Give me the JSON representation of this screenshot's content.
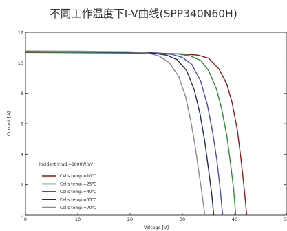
{
  "page": {
    "title": "不同工作温度下I-V曲线(SPP340N60H)"
  },
  "chart_data": {
    "type": "line",
    "title": "不同工作温度下I-V曲线(SPP340N60H)",
    "xlabel": "Voltage [V]",
    "ylabel": "Current [A]",
    "xlim": [
      0,
      50
    ],
    "ylim": [
      0,
      12
    ],
    "xticks": [
      0,
      10,
      20,
      30,
      40,
      50
    ],
    "yticks": [
      0,
      2,
      4,
      6,
      8,
      10,
      12
    ],
    "grid": false,
    "legend": {
      "placement": "bottom-left",
      "header": "Incident Irrad.=1000W/m²"
    },
    "series": [
      {
        "name": "Cells temp.=10℃",
        "color": "#8b1a1a",
        "points": [
          [
            0,
            10.68
          ],
          [
            10,
            10.66
          ],
          [
            20,
            10.64
          ],
          [
            25,
            10.62
          ],
          [
            30,
            10.58
          ],
          [
            33,
            10.5
          ],
          [
            35,
            10.3
          ],
          [
            37,
            9.6
          ],
          [
            38.5,
            8.6
          ],
          [
            39.5,
            7.4
          ],
          [
            40.5,
            5.6
          ],
          [
            41.2,
            3.7
          ],
          [
            41.8,
            1.8
          ],
          [
            42.3,
            0
          ]
        ]
      },
      {
        "name": "Cells temp.=25℃",
        "color": "#2e8b3a",
        "points": [
          [
            0,
            10.7
          ],
          [
            10,
            10.68
          ],
          [
            20,
            10.66
          ],
          [
            25,
            10.64
          ],
          [
            29,
            10.58
          ],
          [
            31.5,
            10.45
          ],
          [
            33.5,
            10.15
          ],
          [
            35,
            9.5
          ],
          [
            36.5,
            8.3
          ],
          [
            37.5,
            7.0
          ],
          [
            38.5,
            5.2
          ],
          [
            39.2,
            3.4
          ],
          [
            39.8,
            1.7
          ],
          [
            40.2,
            0
          ]
        ]
      },
      {
        "name": "Cells temp.=40℃",
        "color": "#4a4ab8",
        "points": [
          [
            0,
            10.73
          ],
          [
            10,
            10.71
          ],
          [
            20,
            10.69
          ],
          [
            25,
            10.65
          ],
          [
            28,
            10.55
          ],
          [
            30,
            10.35
          ],
          [
            31.8,
            9.9
          ],
          [
            33.5,
            8.8
          ],
          [
            34.8,
            7.2
          ],
          [
            35.8,
            5.4
          ],
          [
            36.6,
            3.6
          ],
          [
            37.2,
            1.8
          ],
          [
            37.7,
            0
          ]
        ]
      },
      {
        "name": "Cells temp.=55℃",
        "color": "#1f2a5c",
        "points": [
          [
            0,
            10.75
          ],
          [
            10,
            10.73
          ],
          [
            20,
            10.7
          ],
          [
            24,
            10.65
          ],
          [
            27,
            10.5
          ],
          [
            29,
            10.2
          ],
          [
            30.8,
            9.5
          ],
          [
            32.3,
            8.2
          ],
          [
            33.4,
            6.6
          ],
          [
            34.3,
            4.8
          ],
          [
            35,
            3.0
          ],
          [
            35.6,
            1.4
          ],
          [
            36,
            0
          ]
        ]
      },
      {
        "name": "Cells temp.=70℃",
        "color": "#8a8a8a",
        "points": [
          [
            0,
            10.78
          ],
          [
            10,
            10.76
          ],
          [
            20,
            10.72
          ],
          [
            23,
            10.66
          ],
          [
            25.5,
            10.45
          ],
          [
            27.5,
            10.0
          ],
          [
            29.3,
            9.1
          ],
          [
            30.6,
            7.8
          ],
          [
            31.6,
            6.2
          ],
          [
            32.5,
            4.4
          ],
          [
            33.2,
            2.7
          ],
          [
            33.8,
            1.3
          ],
          [
            34.3,
            0
          ]
        ]
      }
    ]
  }
}
